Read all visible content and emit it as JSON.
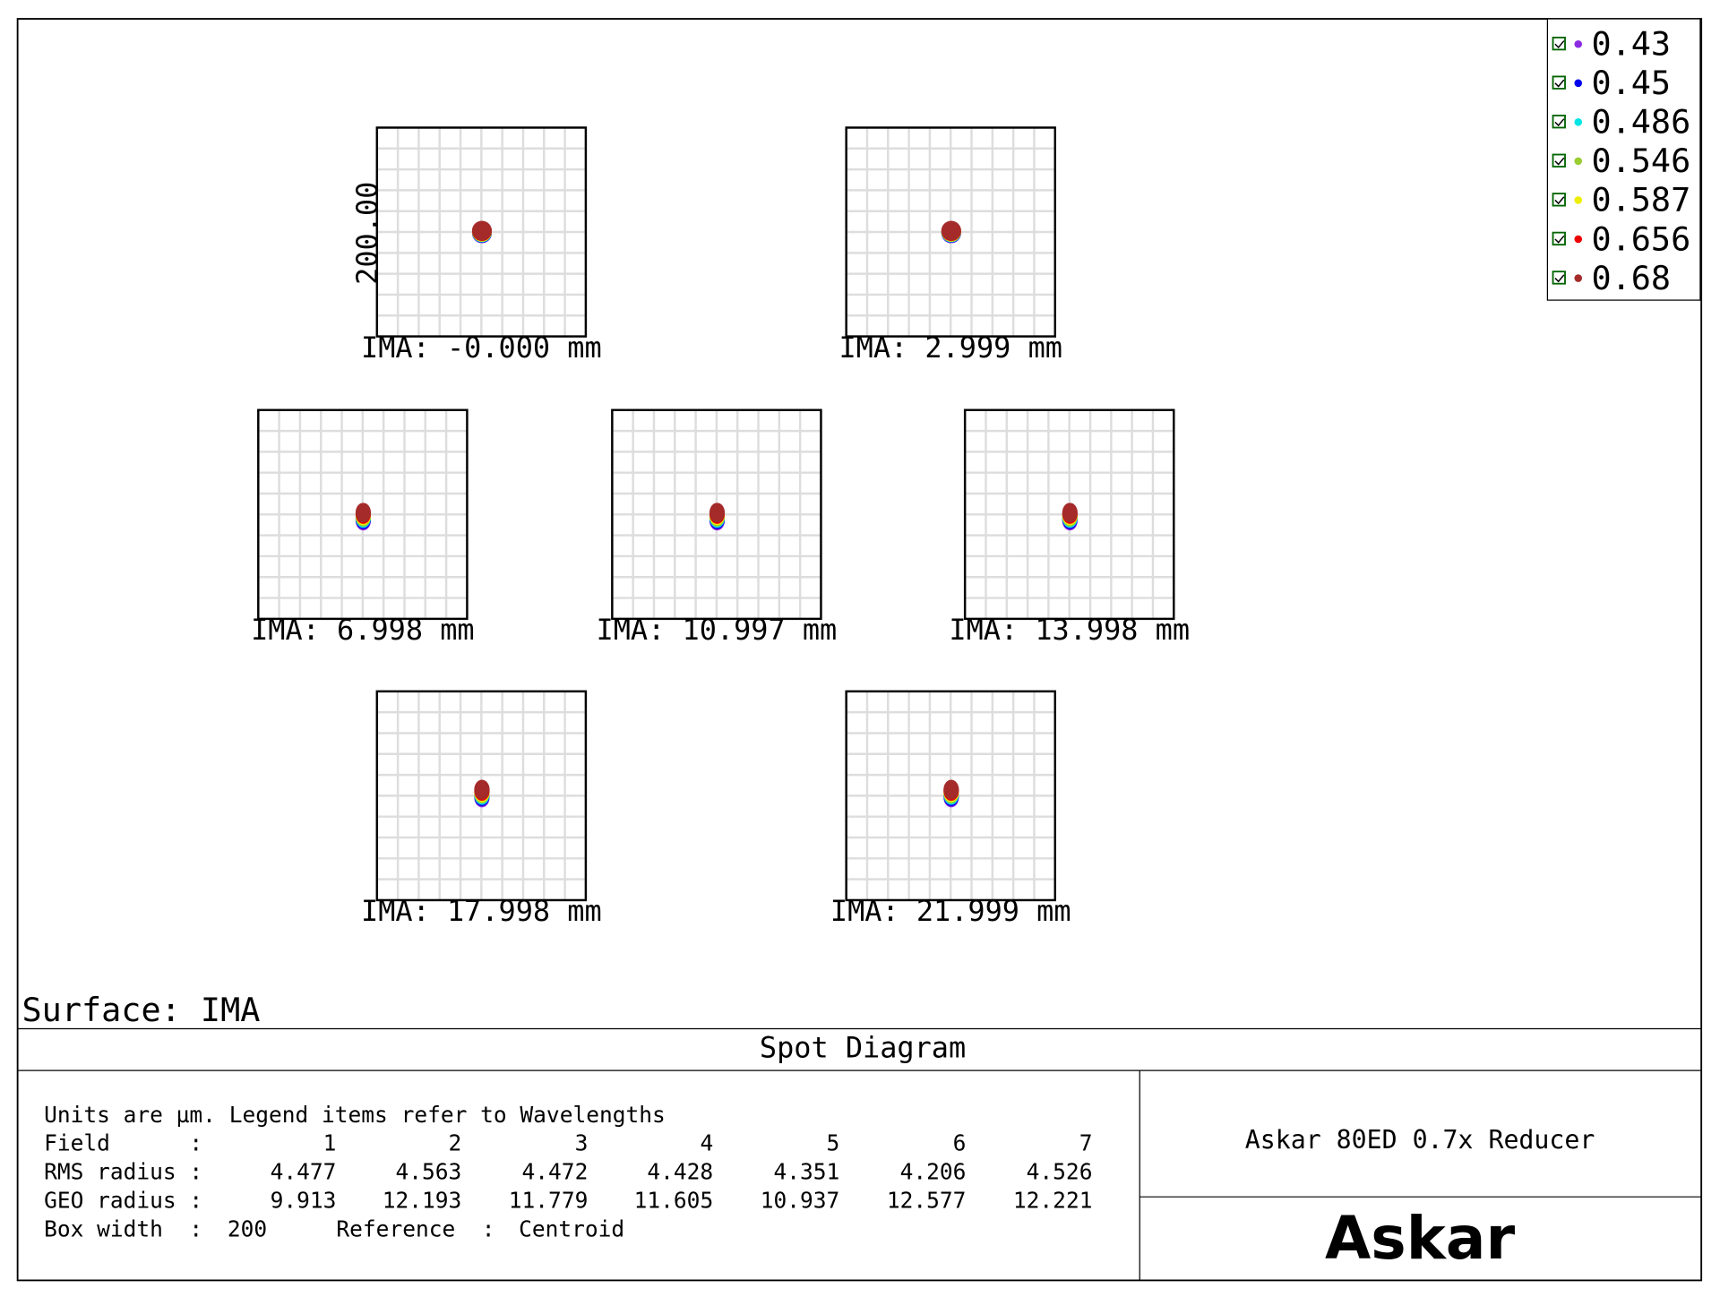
{
  "legend": [
    {
      "label": "0.43",
      "color": "#8a2be2"
    },
    {
      "label": "0.45",
      "color": "#0000ee"
    },
    {
      "label": "0.486",
      "color": "#00e5e5"
    },
    {
      "label": "0.546",
      "color": "#9acd32"
    },
    {
      "label": "0.587",
      "color": "#eeee00"
    },
    {
      "label": "0.656",
      "color": "#ee0000"
    },
    {
      "label": "0.68",
      "color": "#a52a2a"
    }
  ],
  "scale_label": "200.00",
  "fields": [
    "IMA: -0.000 mm",
    "IMA: 2.999 mm",
    "IMA: 6.998 mm",
    "IMA: 10.997 mm",
    "IMA: 13.998 mm",
    "IMA: 17.998 mm",
    "IMA: 21.999 mm"
  ],
  "surface": "Surface: IMA",
  "title": "Spot Diagram",
  "info": {
    "units": "Units are µm. Legend items refer to Wavelengths",
    "rows": [
      {
        "label": "Field      :",
        "values": [
          1,
          2,
          3,
          4,
          5,
          6,
          7
        ]
      },
      {
        "label": "RMS radius :",
        "values": [
          4.477,
          4.563,
          4.472,
          4.428,
          4.351,
          4.206,
          4.526
        ]
      },
      {
        "label": "GEO radius :",
        "values": [
          9.913,
          12.193,
          11.779,
          11.605,
          10.937,
          12.577,
          12.221
        ]
      }
    ],
    "box_width_label": "Box width  :",
    "box_width": 200,
    "reference_label": "Reference  :",
    "reference": "Centroid"
  },
  "lens": "Askar 80ED 0.7x Reducer",
  "logo": "Askar"
}
